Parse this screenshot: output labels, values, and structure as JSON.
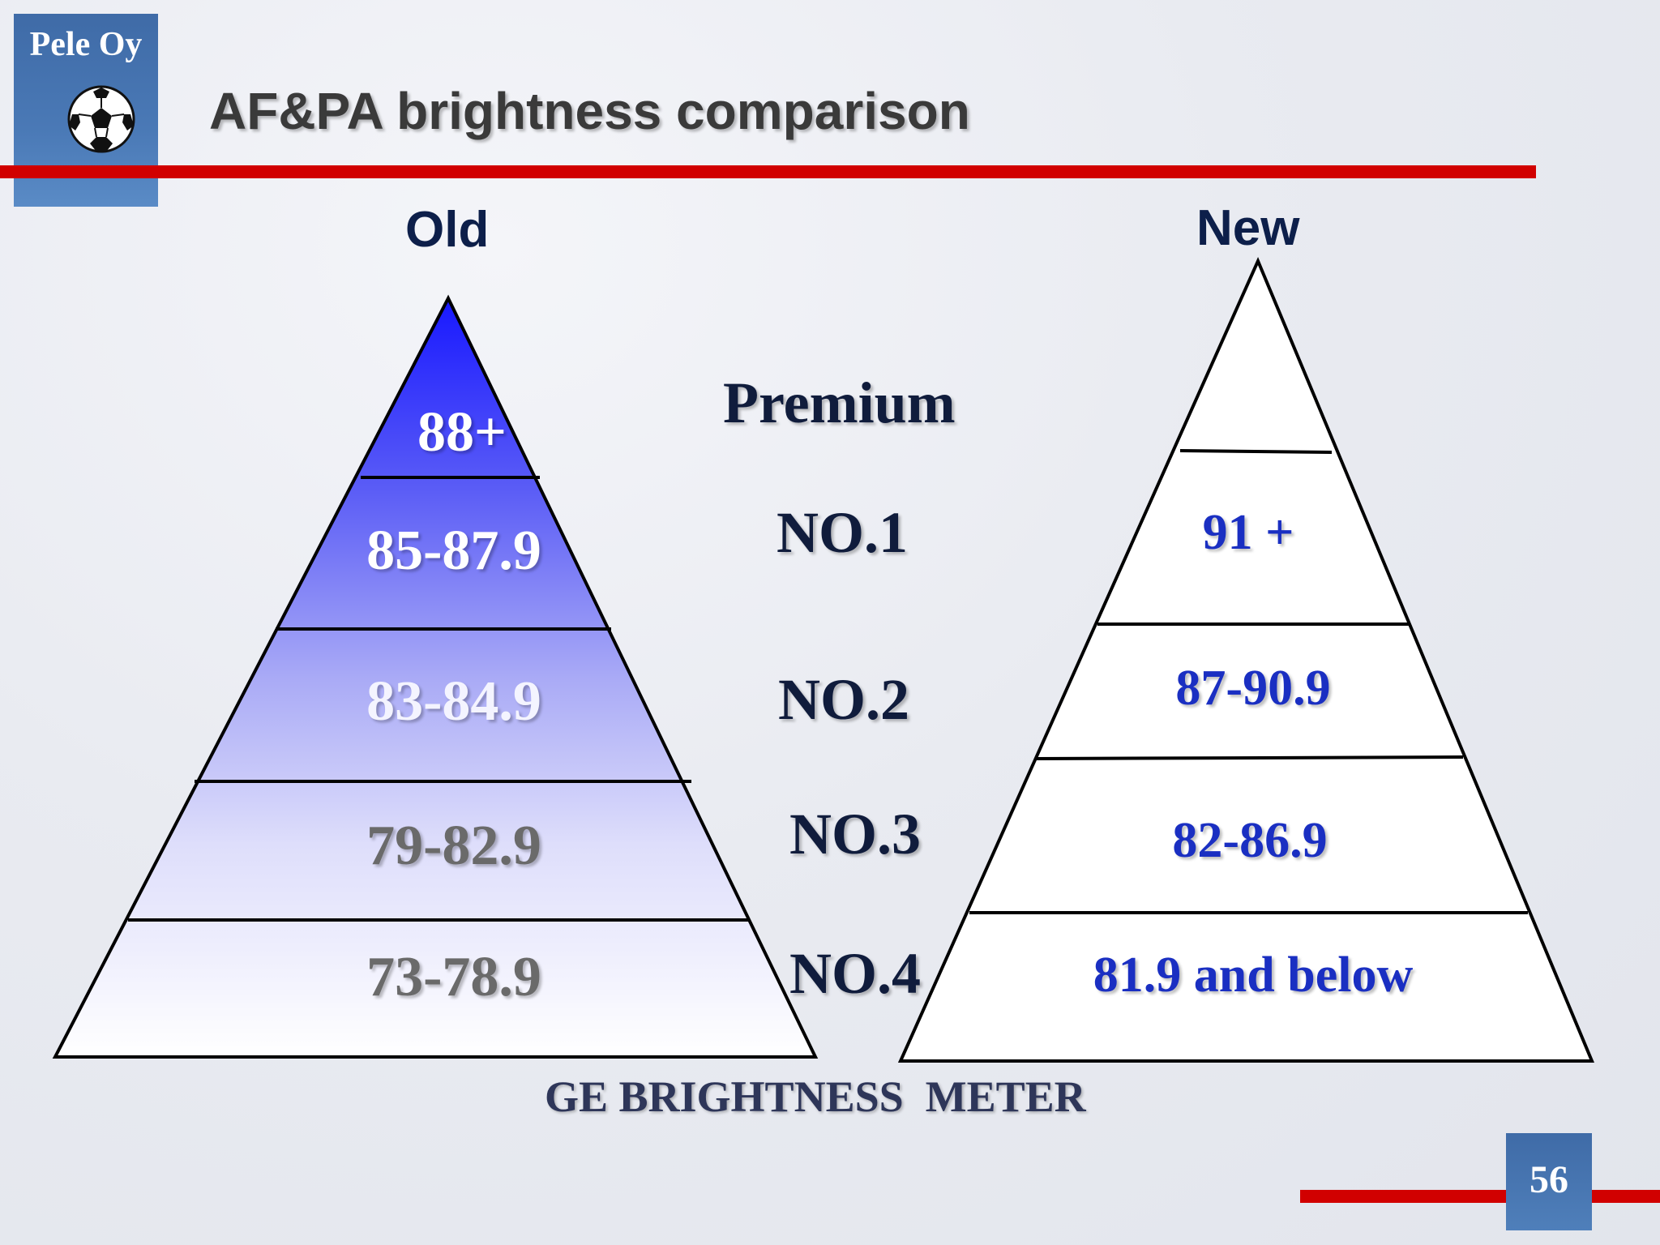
{
  "logo": {
    "company": "Pele Oy",
    "icon": "soccer-ball-icon"
  },
  "title": "AF&PA brightness comparison",
  "old": {
    "heading": "Old",
    "bands": [
      "88+",
      "85-87.9",
      "83-84.9",
      "79-82.9",
      "73-78.9"
    ]
  },
  "new": {
    "heading": "New",
    "bands": [
      "",
      "91 +",
      "87-90.9",
      "82-86.9",
      "81.9 and below"
    ]
  },
  "grades": [
    "Premium",
    "NO.1",
    "NO.2",
    "NO.3",
    "NO.4"
  ],
  "footer": "GE BRIGHTNESS  METER",
  "page_number": "56",
  "colors": {
    "accent_red": "#d10000",
    "logo_blue": "#4a79b6",
    "pyramid_blue": "#2020ff",
    "new_text_blue": "#1a2fc2"
  }
}
